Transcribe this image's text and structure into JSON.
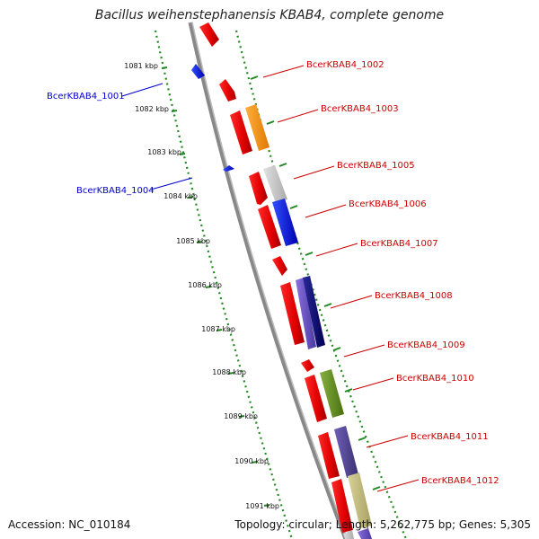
{
  "title": "Bacillus weihenstephanensis KBAB4, complete genome",
  "footer": {
    "accession": "Accession: NC_010184",
    "info": "Topology: circular; Length: 5,262,775 bp; Genes: 5,305"
  },
  "colors": {
    "forward": "#cc0000",
    "reverse": "#0000cc",
    "tick": "#228822",
    "backbone": "#888888"
  },
  "kbp_labels": [
    "1081 kbp",
    "1082 kbp",
    "1083 kbp",
    "1084 kbp",
    "1085 kbp",
    "1086 kbp",
    "1087 kbp",
    "1088 kbp",
    "1089 kbp",
    "1090 kbp",
    "1091 kbp"
  ],
  "gene_labels_left": [
    "BcerKBAB4_1001",
    "BcerKBAB4_1004"
  ],
  "gene_labels_right": [
    "BcerKBAB4_1002",
    "BcerKBAB4_1003",
    "BcerKBAB4_1005",
    "BcerKBAB4_1006",
    "BcerKBAB4_1007",
    "BcerKBAB4_1008",
    "BcerKBAB4_1009",
    "BcerKBAB4_1010",
    "BcerKBAB4_1011",
    "BcerKBAB4_1012"
  ]
}
